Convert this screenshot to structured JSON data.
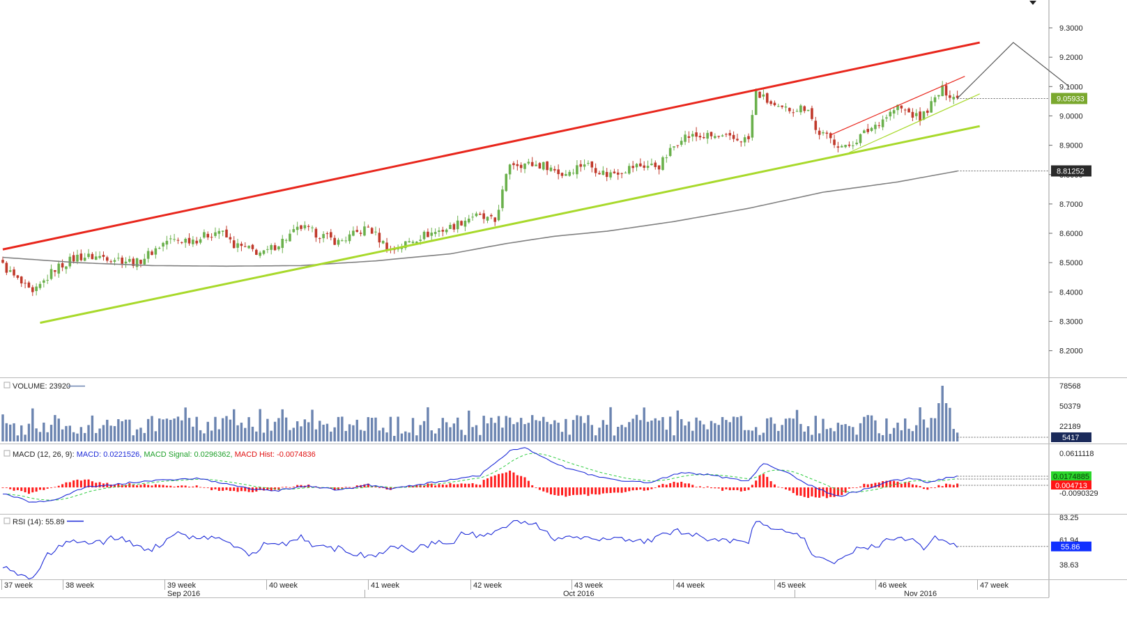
{
  "colors": {
    "up_candle": "#6ab04c",
    "down_candle": "#c0392b",
    "red_trend": "#e8261c",
    "green_trend": "#a8d92b",
    "ma_line": "#808080",
    "volume_bar": "#6b84b0",
    "macd_line": "#1d2bd8",
    "signal_line": "#2ecc40",
    "hist_bar": "#ff1a1a",
    "rsi_line": "#1d2bd8",
    "price_badge": "#7aa82e",
    "volume_badge": "#1a2a5a",
    "macd_badge_green": "#2bd62b",
    "macd_badge_red": "#ff1414",
    "rsi_badge": "#1030ff"
  },
  "chart_data": [
    {
      "type": "candlestick",
      "panel": "price",
      "y_ticks": [
        "9.3000",
        "9.2000",
        "9.1000",
        "9.0000",
        "8.9000",
        "8.8000",
        "8.7000",
        "8.6000",
        "8.5000",
        "8.4000",
        "8.3000",
        "8.2000"
      ],
      "ylim": [
        8.12,
        9.42
      ],
      "last_price_label": "9.05933",
      "ma_label": "8.81252",
      "trend_lines": [
        {
          "name": "upper-channel",
          "color": "red",
          "from": {
            "index": 0,
            "value": 8.545
          },
          "to": {
            "index": 262,
            "value": 9.25
          }
        },
        {
          "name": "lower-channel",
          "color": "green",
          "from": {
            "index": 10,
            "value": 8.295
          },
          "to": {
            "index": 262,
            "value": 8.965
          }
        },
        {
          "name": "short-upper",
          "color": "red",
          "from": {
            "index": 222,
            "value": 8.935
          },
          "to": {
            "index": 258,
            "value": 9.135
          }
        },
        {
          "name": "short-lower",
          "color": "green",
          "from": {
            "index": 227,
            "value": 8.875
          },
          "to": {
            "index": 262,
            "value": 9.075
          }
        },
        {
          "name": "projection",
          "color": "gray",
          "points": [
            {
              "index": 256,
              "value": 9.06
            },
            {
              "index": 271,
              "value": 9.25
            },
            {
              "index": 286,
              "value": 9.1
            }
          ]
        }
      ],
      "ma_anchors": [
        [
          0,
          8.518
        ],
        [
          20,
          8.5
        ],
        [
          40,
          8.49
        ],
        [
          60,
          8.488
        ],
        [
          80,
          8.49
        ],
        [
          100,
          8.506
        ],
        [
          120,
          8.53
        ],
        [
          135,
          8.565
        ],
        [
          148,
          8.59
        ],
        [
          162,
          8.607
        ],
        [
          180,
          8.64
        ],
        [
          200,
          8.685
        ],
        [
          220,
          8.74
        ],
        [
          240,
          8.775
        ],
        [
          256,
          8.812
        ]
      ],
      "price_anchors": [
        [
          0,
          8.49
        ],
        [
          8,
          8.39
        ],
        [
          14,
          8.48
        ],
        [
          20,
          8.52
        ],
        [
          28,
          8.52
        ],
        [
          36,
          8.5
        ],
        [
          44,
          8.575
        ],
        [
          52,
          8.58
        ],
        [
          58,
          8.61
        ],
        [
          62,
          8.56
        ],
        [
          70,
          8.53
        ],
        [
          80,
          8.62
        ],
        [
          90,
          8.57
        ],
        [
          98,
          8.62
        ],
        [
          104,
          8.54
        ],
        [
          112,
          8.59
        ],
        [
          120,
          8.62
        ],
        [
          126,
          8.66
        ],
        [
          132,
          8.64
        ],
        [
          136,
          8.84
        ],
        [
          146,
          8.83
        ],
        [
          150,
          8.8
        ],
        [
          156,
          8.84
        ],
        [
          162,
          8.8
        ],
        [
          170,
          8.83
        ],
        [
          176,
          8.83
        ],
        [
          182,
          8.93
        ],
        [
          190,
          8.93
        ],
        [
          196,
          8.92
        ],
        [
          200,
          8.92
        ],
        [
          202,
          9.08
        ],
        [
          208,
          9.02
        ],
        [
          216,
          9.03
        ],
        [
          218,
          8.95
        ],
        [
          226,
          8.89
        ],
        [
          234,
          8.97
        ],
        [
          240,
          9.03
        ],
        [
          246,
          8.99
        ],
        [
          252,
          9.09
        ],
        [
          256,
          9.059
        ]
      ]
    },
    {
      "type": "bar",
      "panel": "volume",
      "label": "VOLUME: 23920",
      "y_ticks": [
        "78568",
        "50379",
        "22189"
      ],
      "last_value_label": "5417"
    },
    {
      "type": "line",
      "panel": "macd",
      "label_prefix": "MACD (12, 26, 9):",
      "macd_label": "MACD: 0.0221526",
      "signal_label": "MACD Signal: 0.0296362",
      "hist_label": "MACD Hist: -0.0074836",
      "y_ticks": [
        "0.0611118",
        "-0.0090329"
      ],
      "badge_top": "0.0174885",
      "badge_bottom": "0.004713"
    },
    {
      "type": "line",
      "panel": "rsi",
      "label": "RSI (14): 55.89",
      "y_ticks": [
        "83.25",
        "61.94",
        "38.63"
      ],
      "last_value_label": "55.86",
      "rsi_anchors": [
        [
          0,
          38
        ],
        [
          4,
          28
        ],
        [
          8,
          26
        ],
        [
          12,
          48
        ],
        [
          16,
          58
        ],
        [
          20,
          62
        ],
        [
          26,
          59
        ],
        [
          30,
          65
        ],
        [
          36,
          57
        ],
        [
          40,
          52
        ],
        [
          46,
          69
        ],
        [
          52,
          62
        ],
        [
          58,
          67
        ],
        [
          62,
          57
        ],
        [
          66,
          48
        ],
        [
          70,
          57
        ],
        [
          76,
          58
        ],
        [
          80,
          67
        ],
        [
          84,
          55
        ],
        [
          90,
          54
        ],
        [
          96,
          48
        ],
        [
          100,
          47
        ],
        [
          104,
          57
        ],
        [
          110,
          52
        ],
        [
          116,
          60
        ],
        [
          120,
          59
        ],
        [
          124,
          69
        ],
        [
          128,
          66
        ],
        [
          132,
          69
        ],
        [
          136,
          79
        ],
        [
          142,
          78
        ],
        [
          148,
          64
        ],
        [
          152,
          64
        ],
        [
          156,
          66
        ],
        [
          160,
          62
        ],
        [
          166,
          64
        ],
        [
          172,
          59
        ],
        [
          176,
          66
        ],
        [
          180,
          70
        ],
        [
          186,
          68
        ],
        [
          190,
          61
        ],
        [
          196,
          62
        ],
        [
          200,
          61
        ],
        [
          202,
          81
        ],
        [
          208,
          72
        ],
        [
          214,
          67
        ],
        [
          218,
          46
        ],
        [
          222,
          40
        ],
        [
          226,
          47
        ],
        [
          230,
          55
        ],
        [
          236,
          58
        ],
        [
          240,
          67
        ],
        [
          246,
          57
        ],
        [
          248,
          54
        ],
        [
          250,
          64
        ],
        [
          254,
          58
        ],
        [
          256,
          56
        ]
      ]
    }
  ],
  "x_axis": {
    "week_labels": [
      {
        "label": "37 week",
        "index": 0
      },
      {
        "label": "38 week",
        "index": 16
      },
      {
        "label": "39 week",
        "index": 42
      },
      {
        "label": "40 week",
        "index": 67
      },
      {
        "label": "41 week",
        "index": 92
      },
      {
        "label": "42 week",
        "index": 118
      },
      {
        "label": "43 week",
        "index": 143
      },
      {
        "label": "44 week",
        "index": 168
      },
      {
        "label": "45 week",
        "index": 193
      },
      {
        "label": "46 week",
        "index": 219
      },
      {
        "label": "47 week",
        "index": 244
      }
    ],
    "month_labels": [
      {
        "label": "Sep 2016",
        "index": 45
      },
      {
        "label": "Oct 2016",
        "index": 143
      },
      {
        "label": "Nov 2016",
        "index": 228
      }
    ]
  }
}
